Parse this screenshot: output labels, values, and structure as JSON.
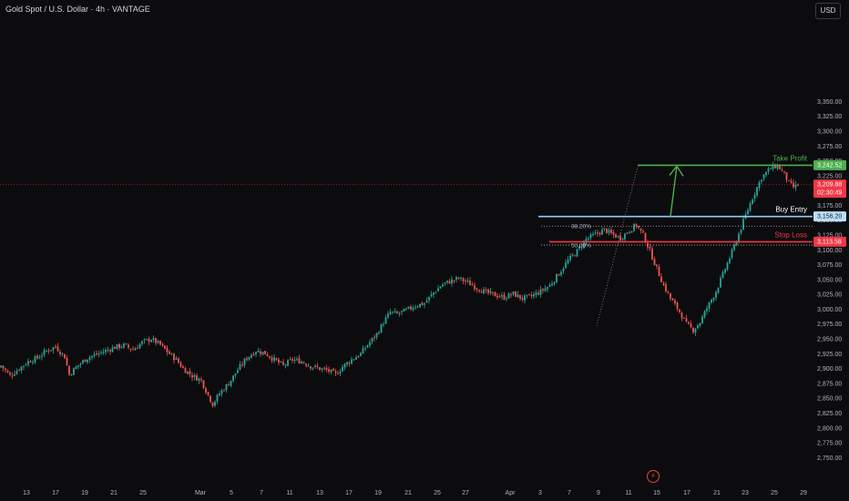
{
  "header": {
    "symbol_title": "Gold Spot / U.S. Dollar · 4h · VANTAGE",
    "currency_button": "USD"
  },
  "colors": {
    "bull": "#26a69a",
    "bear": "#ef5350",
    "take_profit": "#4caf50",
    "stop_loss": "#f23645",
    "buy_entry": "#90caf9",
    "price_label": "#f23645",
    "background": "#0c0c0e"
  },
  "icons": {
    "replay": "lightning-icon"
  },
  "chart_data": {
    "type": "candlestick",
    "title": "Gold Spot / U.S. Dollar · 4h · VANTAGE",
    "ylim": [
      2735,
      3380
    ],
    "y_ticks": [
      2750,
      2775,
      2800,
      2825,
      2850,
      2875,
      2900,
      2925,
      2950,
      2975,
      3000,
      3025,
      3050,
      3075,
      3100,
      3125,
      3150,
      3175,
      3200,
      3225,
      3250,
      3275,
      3300,
      3325,
      3350
    ],
    "y_tick_labels": [
      "2,750.00",
      "2,775.00",
      "2,800.00",
      "2,825.00",
      "2,850.00",
      "2,875.00",
      "2,900.00",
      "2,925.00",
      "2,950.00",
      "2,975.00",
      "3,000.00",
      "3,025.00",
      "3,050.00",
      "3,075.00",
      "3,100.00",
      "3,125.00",
      "3,150.00",
      "3,175.00",
      "3,200.00",
      "3,225.00",
      "3,250.00",
      "3,275.00",
      "3,300.00",
      "3,325.00",
      "3,350.00"
    ],
    "x_tick_labels": [
      "13",
      "17",
      "19",
      "21",
      "25",
      "Mar",
      "5",
      "7",
      "11",
      "13",
      "17",
      "19",
      "21",
      "25",
      "27",
      "Apr",
      "3",
      "7",
      "9",
      "11",
      "15",
      "17",
      "21",
      "23",
      "25",
      "29"
    ],
    "close_path": [
      [
        0,
        2905
      ],
      [
        4,
        2888
      ],
      [
        8,
        2900
      ],
      [
        12,
        2912
      ],
      [
        16,
        2918
      ],
      [
        20,
        2930
      ],
      [
        24,
        2937
      ],
      [
        28,
        2920
      ],
      [
        30,
        2890
      ],
      [
        34,
        2906
      ],
      [
        38,
        2918
      ],
      [
        42,
        2924
      ],
      [
        46,
        2930
      ],
      [
        50,
        2936
      ],
      [
        54,
        2939
      ],
      [
        58,
        2932
      ],
      [
        62,
        2944
      ],
      [
        66,
        2950
      ],
      [
        70,
        2940
      ],
      [
        74,
        2925
      ],
      [
        77,
        2915
      ],
      [
        80,
        2900
      ],
      [
        84,
        2888
      ],
      [
        88,
        2880
      ],
      [
        91,
        2855
      ],
      [
        93,
        2840
      ],
      [
        96,
        2858
      ],
      [
        100,
        2875
      ],
      [
        104,
        2898
      ],
      [
        108,
        2918
      ],
      [
        112,
        2930
      ],
      [
        116,
        2926
      ],
      [
        120,
        2915
      ],
      [
        124,
        2905
      ],
      [
        128,
        2915
      ],
      [
        132,
        2912
      ],
      [
        136,
        2904
      ],
      [
        140,
        2900
      ],
      [
        144,
        2896
      ],
      [
        147,
        2890
      ],
      [
        150,
        2903
      ],
      [
        154,
        2915
      ],
      [
        158,
        2925
      ],
      [
        161,
        2940
      ],
      [
        165,
        2958
      ],
      [
        168,
        2978
      ],
      [
        171,
        2995
      ],
      [
        174,
        2992
      ],
      [
        178,
        2998
      ],
      [
        182,
        3006
      ],
      [
        186,
        3010
      ],
      [
        190,
        3028
      ],
      [
        194,
        3042
      ],
      [
        198,
        3048
      ],
      [
        201,
        3052
      ],
      [
        205,
        3045
      ],
      [
        209,
        3036
      ],
      [
        213,
        3028
      ],
      [
        217,
        3024
      ],
      [
        221,
        3020
      ],
      [
        225,
        3026
      ],
      [
        229,
        3018
      ],
      [
        233,
        3022
      ],
      [
        237,
        3030
      ],
      [
        241,
        3040
      ],
      [
        245,
        3060
      ],
      [
        249,
        3082
      ],
      [
        253,
        3098
      ],
      [
        257,
        3118
      ],
      [
        261,
        3126
      ],
      [
        265,
        3134
      ],
      [
        268,
        3127
      ],
      [
        272,
        3120
      ],
      [
        276,
        3133
      ],
      [
        279,
        3142
      ],
      [
        282,
        3125
      ],
      [
        285,
        3098
      ],
      [
        288,
        3068
      ],
      [
        291,
        3040
      ],
      [
        294,
        3018
      ],
      [
        298,
        2996
      ],
      [
        301,
        2975
      ],
      [
        304,
        2965
      ],
      [
        307,
        2978
      ],
      [
        310,
        3002
      ],
      [
        314,
        3030
      ],
      [
        318,
        3068
      ],
      [
        322,
        3106
      ],
      [
        326,
        3148
      ],
      [
        330,
        3188
      ],
      [
        334,
        3222
      ],
      [
        338,
        3238
      ],
      [
        341,
        3242
      ],
      [
        344,
        3228
      ],
      [
        346,
        3212
      ],
      [
        348,
        3206
      ],
      [
        350,
        3209
      ]
    ],
    "levels": {
      "take_profit": {
        "label": "Take Profit",
        "value": 3242.52,
        "value_label": "3,242.52"
      },
      "buy_entry": {
        "label": "Buy Entry",
        "value": 3156.2,
        "value_label": "3,156.20"
      },
      "stop_loss": {
        "label": "Stop Loss",
        "value": 3113.58,
        "value_label": "3,113.58"
      },
      "current_price": {
        "value": 3209.88,
        "value_label": "3,209.88",
        "countdown": "02:30:49"
      }
    },
    "fibonacci": [
      {
        "label": "38.20%",
        "value": 3140
      },
      {
        "label": "50.00%",
        "value": 3108
      }
    ]
  }
}
